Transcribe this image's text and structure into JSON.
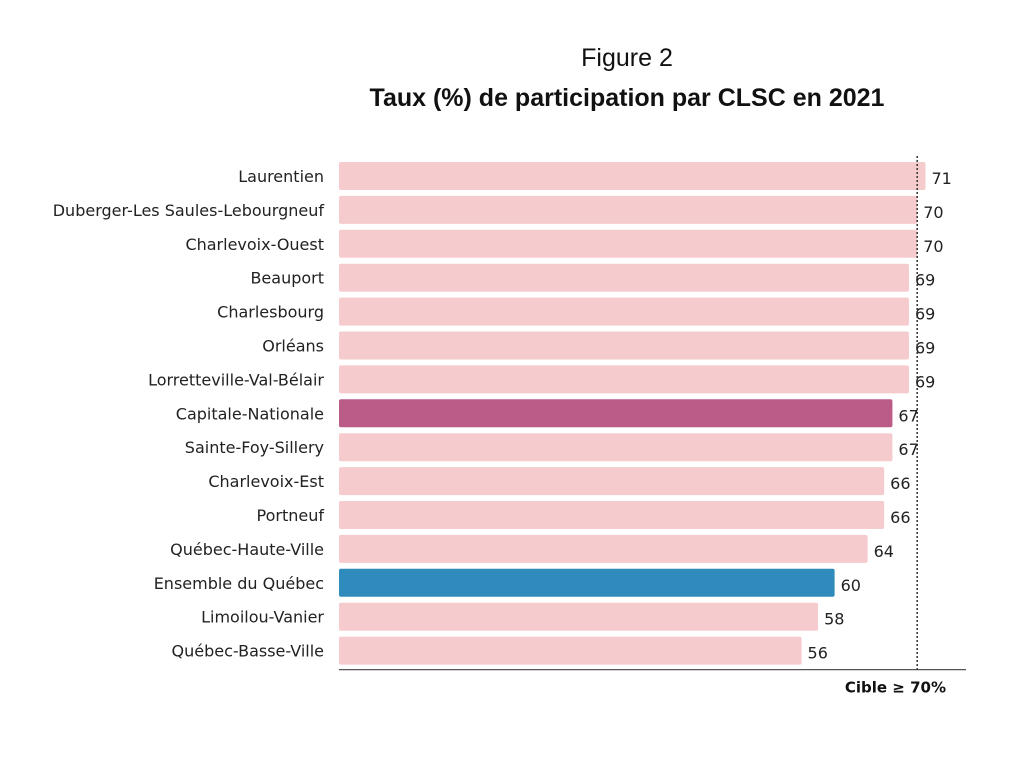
{
  "header": {
    "figure_label": "Figure 2",
    "title": "Taux (%) de participation par CLSC en 2021"
  },
  "chart_data": {
    "type": "bar",
    "orientation": "horizontal",
    "categories": [
      "Laurentien",
      "Duberger-Les Saules-Lebourgneuf",
      "Charlevoix-Ouest",
      "Beauport",
      "Charlesbourg",
      "Orléans",
      "Lorretteville-Val-Bélair",
      "Capitale-Nationale",
      "Sainte-Foy-Sillery",
      "Charlevoix-Est",
      "Portneuf",
      "Québec-Haute-Ville",
      "Ensemble du Québec",
      "Limoilou-Vanier",
      "Québec-Basse-Ville"
    ],
    "values": [
      71,
      70,
      70,
      69,
      69,
      69,
      69,
      67,
      67,
      66,
      66,
      64,
      60,
      58,
      56
    ],
    "highlight": {
      "Capitale-Nationale": "#bb5c88",
      "Ensemble du Québec": "#2e8bbb"
    },
    "bar_color": "#f6cbcd",
    "target": {
      "value": 70,
      "label": "Cible ≥ 70%"
    },
    "xlim": [
      0,
      71
    ],
    "grid": false,
    "legend": "none"
  }
}
